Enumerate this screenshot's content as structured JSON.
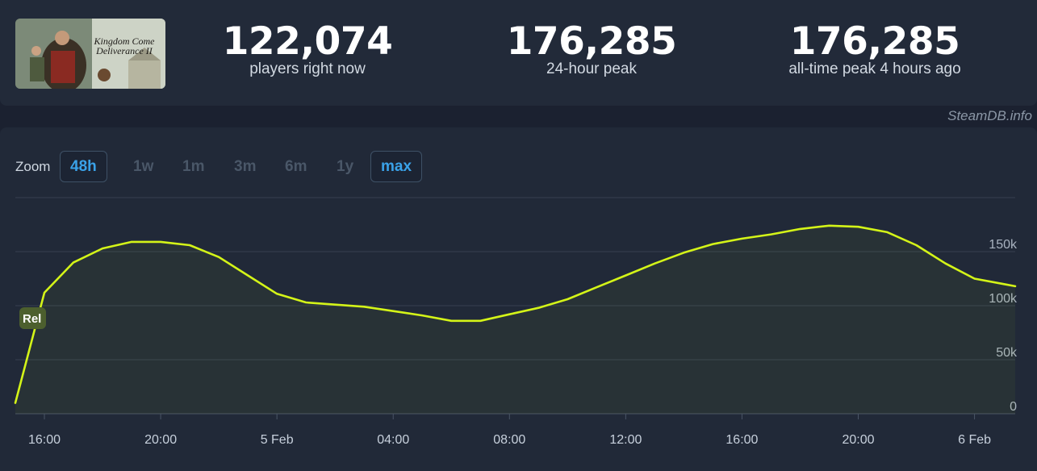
{
  "game": {
    "title": "Kingdom Come Deliverance II"
  },
  "stats": [
    {
      "value": "122,074",
      "label": "players right now"
    },
    {
      "value": "176,285",
      "label": "24-hour peak"
    },
    {
      "value": "176,285",
      "label": "all-time peak 4 hours ago"
    }
  ],
  "watermark": "SteamDB.info",
  "zoom": {
    "label": "Zoom",
    "options": [
      "48h",
      "1w",
      "1m",
      "3m",
      "6m",
      "1y",
      "max"
    ],
    "active": [
      "48h",
      "max"
    ]
  },
  "release_flag": "Rel",
  "colors": {
    "line": "#d4f418",
    "accent": "#3aa2e8",
    "grid": "#364051",
    "flag": "#4c5f2e"
  },
  "chart_data": {
    "type": "line",
    "title": "",
    "xlabel": "",
    "ylabel": "",
    "x_ticks": [
      "16:00",
      "20:00",
      "5 Feb",
      "04:00",
      "08:00",
      "12:00",
      "16:00",
      "20:00",
      "6 Feb"
    ],
    "y_ticks": [
      "0",
      "50k",
      "100k",
      "150k"
    ],
    "ylim": [
      0,
      200000
    ],
    "xlim_hours": [
      -1,
      33.4
    ],
    "grid": true,
    "series": [
      {
        "name": "",
        "x_hours": [
          -1,
          0,
          1,
          2,
          3,
          4,
          5,
          6,
          7,
          8,
          9,
          10,
          11,
          12,
          13,
          14,
          15,
          16,
          17,
          18,
          19,
          20,
          21,
          22,
          23,
          24,
          25,
          26,
          27,
          28,
          29,
          30,
          31,
          32,
          33,
          33.4
        ],
        "values": [
          10000,
          112000,
          140000,
          153000,
          159000,
          159000,
          156000,
          145000,
          128000,
          111000,
          103000,
          101000,
          99000,
          95000,
          91000,
          86000,
          86000,
          92000,
          98000,
          106000,
          117000,
          128000,
          139000,
          149000,
          157000,
          162000,
          166000,
          171000,
          174000,
          173000,
          168000,
          156000,
          139000,
          125000,
          120000,
          118000
        ]
      }
    ]
  }
}
